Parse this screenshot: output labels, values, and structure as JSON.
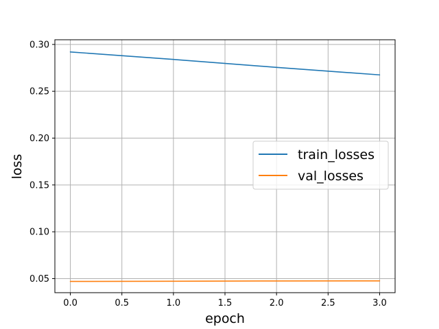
{
  "chart_data": {
    "type": "line",
    "xlabel": "epoch",
    "ylabel": "loss",
    "x": [
      0,
      1,
      2,
      3
    ],
    "xlim": [
      -0.15,
      3.15
    ],
    "ylim": [
      0.035,
      0.305
    ],
    "xticks": [
      0.0,
      0.5,
      1.0,
      1.5,
      2.0,
      2.5,
      3.0
    ],
    "xtick_labels": [
      "0.0",
      "0.5",
      "1.0",
      "1.5",
      "2.0",
      "2.5",
      "3.0"
    ],
    "yticks": [
      0.05,
      0.1,
      0.15,
      0.2,
      0.25,
      0.3
    ],
    "ytick_labels": [
      "0.05",
      "0.10",
      "0.15",
      "0.20",
      "0.25",
      "0.30"
    ],
    "grid": true,
    "legend_position": "center-right",
    "series": [
      {
        "name": "train_losses",
        "color": "#1f77b4",
        "values": [
          0.292,
          0.284,
          0.2755,
          0.2675
        ]
      },
      {
        "name": "val_losses",
        "color": "#ff7f0e",
        "values": [
          0.047,
          0.0472,
          0.0475,
          0.0476
        ]
      }
    ]
  }
}
